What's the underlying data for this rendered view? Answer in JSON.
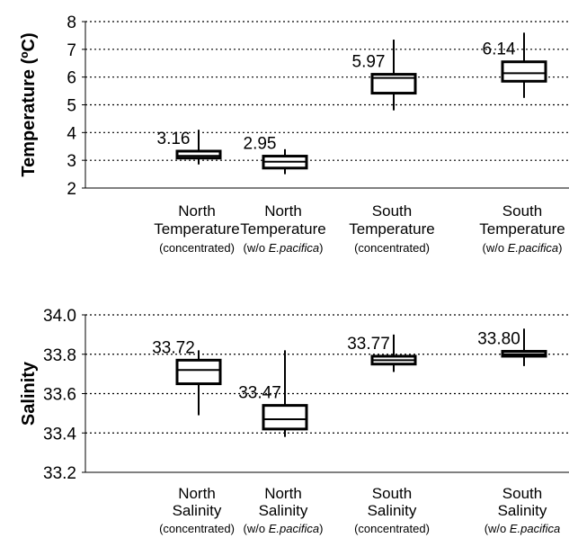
{
  "chart_data": [
    {
      "type": "boxplot",
      "ylabel": "Temperature (ºC)",
      "ylim": [
        2,
        8
      ],
      "yticks": [
        "2",
        "3",
        "4",
        "5",
        "6",
        "7",
        "8"
      ],
      "grid": "horizontal dotted",
      "categories": [
        {
          "line1": "North",
          "line2": "Temperature",
          "sub": "(concentrated)",
          "sub_italic": ""
        },
        {
          "line1": "North",
          "line2": "Temperature",
          "sub": "(w/o ",
          "sub_italic": "E.pacifica",
          "sub_end": ")"
        },
        {
          "line1": "South",
          "line2": "Temperature",
          "sub": "(concentrated)",
          "sub_italic": ""
        },
        {
          "line1": "South",
          "line2": "Temperature",
          "sub": "(w/o ",
          "sub_italic": "E.pacifica",
          "sub_end": ")"
        }
      ],
      "boxes": [
        {
          "median_label": "3.16",
          "median": 3.16,
          "q1": 3.08,
          "q3": 3.33,
          "whisker_low": 2.85,
          "whisker_high": 4.1
        },
        {
          "median_label": "2.95",
          "median": 2.95,
          "q1": 2.72,
          "q3": 3.15,
          "whisker_low": 2.5,
          "whisker_high": 3.4
        },
        {
          "median_label": "5.97",
          "median": 5.97,
          "q1": 5.42,
          "q3": 6.1,
          "whisker_low": 4.8,
          "whisker_high": 7.35
        },
        {
          "median_label": "6.14",
          "median": 6.14,
          "q1": 5.85,
          "q3": 6.55,
          "whisker_low": 5.25,
          "whisker_high": 7.6
        }
      ]
    },
    {
      "type": "boxplot",
      "ylabel": "Salinity",
      "ylim": [
        33.2,
        34.0
      ],
      "yticks": [
        "33.2",
        "33.4",
        "33.6",
        "33.8",
        "34.0"
      ],
      "grid": "horizontal dotted",
      "categories": [
        {
          "line1": "North",
          "line2": "Salinity",
          "sub": "(concentrated)",
          "sub_italic": ""
        },
        {
          "line1": "North",
          "line2": "Salinity",
          "sub": "(w/o ",
          "sub_italic": "E.pacifica",
          "sub_end": ")"
        },
        {
          "line1": "South",
          "line2": "Salinity",
          "sub": "(concentrated)",
          "sub_italic": ""
        },
        {
          "line1": "South",
          "line2": "Salinity",
          "sub": "(w/o ",
          "sub_italic": "E.pacifica",
          "sub_end": ""
        }
      ],
      "boxes": [
        {
          "median_label": "33.72",
          "median": 33.72,
          "q1": 33.65,
          "q3": 33.77,
          "whisker_low": 33.49,
          "whisker_high": 33.82
        },
        {
          "median_label": "33.47",
          "median": 33.47,
          "q1": 33.42,
          "q3": 33.54,
          "whisker_low": 33.38,
          "whisker_high": 33.82
        },
        {
          "median_label": "33.77",
          "median": 33.77,
          "q1": 33.75,
          "q3": 33.79,
          "whisker_low": 33.71,
          "whisker_high": 33.9
        },
        {
          "median_label": "33.80",
          "median": 33.8,
          "q1": 33.79,
          "q3": 33.815,
          "whisker_low": 33.74,
          "whisker_high": 33.93
        }
      ]
    }
  ]
}
